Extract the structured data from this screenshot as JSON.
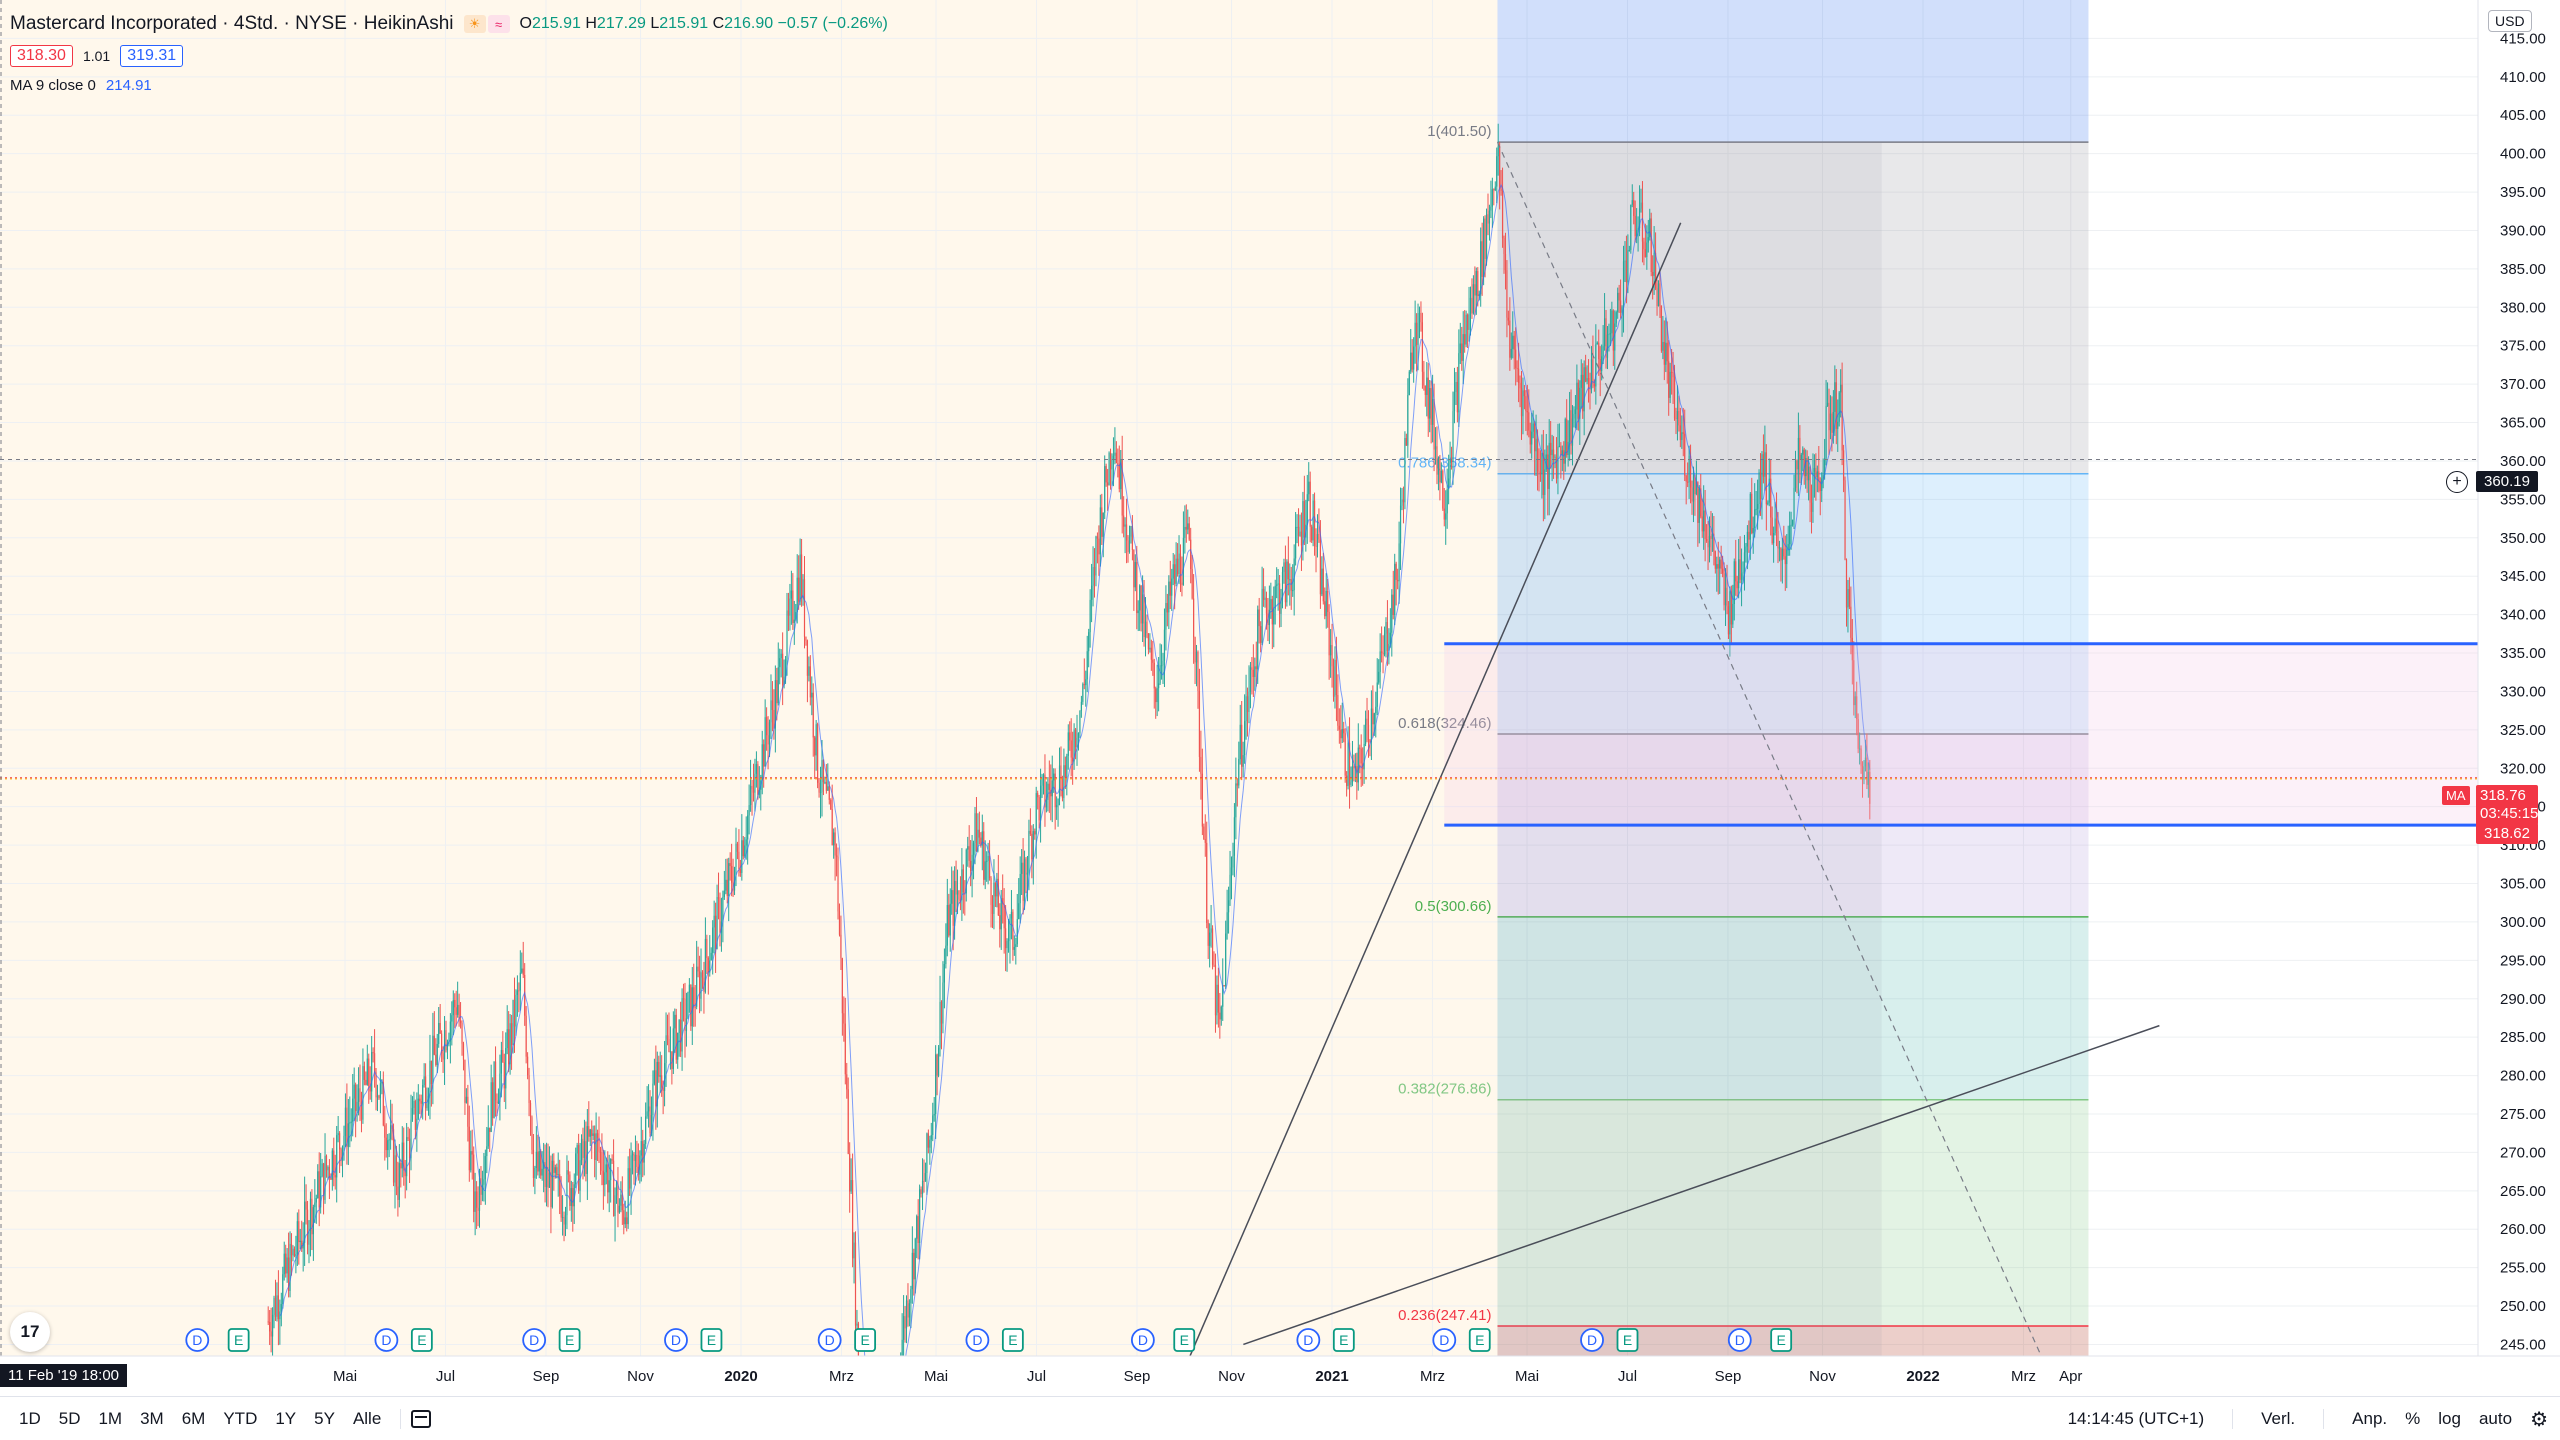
{
  "legend": {
    "title": "Mastercard Incorporated · 4Std. · NYSE · HeikinAshi",
    "ohlc": [
      {
        "k": "O",
        "v": "215.91"
      },
      {
        "k": "H",
        "v": "217.29"
      },
      {
        "k": "L",
        "v": "215.91"
      },
      {
        "k": "C",
        "v": "216.90"
      },
      {
        "k": "",
        "v": "−0.57 (−0.26%)"
      }
    ],
    "sell_price": "318.30",
    "spread": "1.01",
    "buy_price": "319.31",
    "ma_label": "MA 9 close 0",
    "ma_value": "214.91",
    "icons": [
      "sun-icon",
      "wave-icon"
    ]
  },
  "axis_badges": {
    "currency": "USD",
    "crosshair_price": "360.19",
    "last_price": "318.76",
    "countdown": "03:45:15",
    "ma_badge": "MA",
    "ma_price": "318.62",
    "date_cursor": "11 Feb '19   18:00"
  },
  "toolbar": {
    "timeframes": [
      "1D",
      "5D",
      "1M",
      "3M",
      "6M",
      "YTD",
      "1Y",
      "5Y",
      "Alle"
    ],
    "clock": "14:14:45 (UTC+1)",
    "adjust": "Verl.",
    "right_items": [
      "Anp.",
      "%",
      "log",
      "auto"
    ]
  },
  "chart_data": {
    "type": "candlestick",
    "series_type": "HeikinAshi",
    "y_ticks": [
      245,
      250,
      255,
      260,
      265,
      270,
      275,
      280,
      285,
      290,
      295,
      300,
      305,
      310,
      315,
      320,
      325,
      330,
      335,
      340,
      345,
      350,
      355,
      360,
      365,
      370,
      375,
      380,
      385,
      390,
      395,
      400,
      405,
      410,
      415
    ],
    "ylim": [
      243.5,
      420
    ],
    "grid": true,
    "x_ticks": [
      {
        "label": "Mai",
        "t": 0.33,
        "bold": false
      },
      {
        "label": "Jul",
        "t": 0.5,
        "bold": false
      },
      {
        "label": "Sep",
        "t": 0.67,
        "bold": false
      },
      {
        "label": "Nov",
        "t": 0.83,
        "bold": false
      },
      {
        "label": "2020",
        "t": 1.0,
        "bold": true
      },
      {
        "label": "Mrz",
        "t": 1.17,
        "bold": false
      },
      {
        "label": "Mai",
        "t": 1.33,
        "bold": false
      },
      {
        "label": "Jul",
        "t": 1.5,
        "bold": false
      },
      {
        "label": "Sep",
        "t": 1.67,
        "bold": false
      },
      {
        "label": "Nov",
        "t": 1.83,
        "bold": false
      },
      {
        "label": "2021",
        "t": 2.0,
        "bold": true
      },
      {
        "label": "Mrz",
        "t": 2.17,
        "bold": false
      },
      {
        "label": "Mai",
        "t": 2.33,
        "bold": false
      },
      {
        "label": "Jul",
        "t": 2.5,
        "bold": false
      },
      {
        "label": "Sep",
        "t": 2.67,
        "bold": false
      },
      {
        "label": "Nov",
        "t": 2.83,
        "bold": false
      },
      {
        "label": "2022",
        "t": 3.0,
        "bold": true
      },
      {
        "label": "Mrz",
        "t": 3.17,
        "bold": false
      },
      {
        "label": "Apr",
        "t": 3.25,
        "bold": false
      }
    ],
    "price_path": [
      [
        0.2,
        248
      ],
      [
        0.3,
        268
      ],
      [
        0.38,
        281
      ],
      [
        0.42,
        266
      ],
      [
        0.46,
        278
      ],
      [
        0.52,
        290
      ],
      [
        0.55,
        262
      ],
      [
        0.58,
        278
      ],
      [
        0.6,
        281
      ],
      [
        0.63,
        293
      ],
      [
        0.65,
        268
      ],
      [
        0.7,
        264
      ],
      [
        0.75,
        272
      ],
      [
        0.8,
        262
      ],
      [
        0.86,
        280
      ],
      [
        0.92,
        290
      ],
      [
        1.0,
        310
      ],
      [
        1.06,
        330
      ],
      [
        1.1,
        346
      ],
      [
        1.13,
        320
      ],
      [
        1.16,
        310
      ],
      [
        1.18,
        275
      ],
      [
        1.2,
        240
      ],
      [
        1.24,
        228
      ],
      [
        1.28,
        250
      ],
      [
        1.32,
        272
      ],
      [
        1.35,
        300
      ],
      [
        1.4,
        312
      ],
      [
        1.44,
        300
      ],
      [
        1.46,
        298
      ],
      [
        1.5,
        315
      ],
      [
        1.55,
        320
      ],
      [
        1.58,
        330
      ],
      [
        1.6,
        348
      ],
      [
        1.63,
        364
      ],
      [
        1.66,
        348
      ],
      [
        1.7,
        330
      ],
      [
        1.73,
        344
      ],
      [
        1.76,
        350
      ],
      [
        1.79,
        300
      ],
      [
        1.81,
        285
      ],
      [
        1.84,
        320
      ],
      [
        1.88,
        340
      ],
      [
        1.93,
        345
      ],
      [
        1.96,
        356
      ],
      [
        1.99,
        340
      ],
      [
        2.02,
        322
      ],
      [
        2.04,
        318
      ],
      [
        2.08,
        332
      ],
      [
        2.11,
        345
      ],
      [
        2.14,
        380
      ],
      [
        2.16,
        370
      ],
      [
        2.19,
        355
      ],
      [
        2.22,
        375
      ],
      [
        2.25,
        385
      ],
      [
        2.28,
        400
      ],
      [
        2.3,
        376
      ],
      [
        2.33,
        366
      ],
      [
        2.36,
        358
      ],
      [
        2.4,
        364
      ],
      [
        2.44,
        372
      ],
      [
        2.48,
        378
      ],
      [
        2.51,
        392
      ],
      [
        2.54,
        388
      ],
      [
        2.57,
        370
      ],
      [
        2.6,
        360
      ],
      [
        2.64,
        350
      ],
      [
        2.67,
        340
      ],
      [
        2.7,
        350
      ],
      [
        2.73,
        360
      ],
      [
        2.76,
        345
      ],
      [
        2.79,
        360
      ],
      [
        2.82,
        355
      ],
      [
        2.84,
        366
      ],
      [
        2.86,
        368
      ],
      [
        2.87,
        345
      ],
      [
        2.89,
        322
      ],
      [
        2.91,
        318.8
      ]
    ],
    "ma9": {
      "name": "MA 9 close 0",
      "color": "#2962ff"
    },
    "fibonacci": {
      "levels": [
        {
          "label": "1(401.50)",
          "value": 401.5,
          "color": "#787b86"
        },
        {
          "label": "0.786(358.34)",
          "value": 358.34,
          "color": "#64b5f6"
        },
        {
          "label": "0.618(324.46)",
          "value": 324.46,
          "color": "#787b86"
        },
        {
          "label": "0.5(300.66)",
          "value": 300.66,
          "color": "#4caf50"
        },
        {
          "label": "0.382(276.86)",
          "value": 276.86,
          "color": "#81c784"
        },
        {
          "label": "0.236(247.41)",
          "value": 247.41,
          "color": "#f23645"
        }
      ],
      "t_start": 2.28,
      "t_end": 3.28
    },
    "horizontal_lines": [
      {
        "value": 336.2,
        "color": "#2962ff"
      },
      {
        "value": 312.6,
        "color": "#2962ff"
      }
    ],
    "ranges_highlight": [
      {
        "t0": 2.28,
        "t1": 2.93,
        "color": "#9598a1"
      }
    ],
    "trendlines": [
      {
        "from": [
          1.74,
          240
        ],
        "to": [
          2.59,
          391
        ]
      },
      {
        "from": [
          1.85,
          245
        ],
        "to": [
          3.4,
          286.5
        ]
      }
    ],
    "dashed_diagonal": {
      "from": [
        2.28,
        401.5
      ],
      "to": [
        3.2,
        243.5
      ]
    },
    "events": [
      {
        "t": 0.08,
        "kind": "D"
      },
      {
        "t": 0.15,
        "kind": "E"
      },
      {
        "t": 0.4,
        "kind": "D"
      },
      {
        "t": 0.46,
        "kind": "E"
      },
      {
        "t": 0.65,
        "kind": "D"
      },
      {
        "t": 0.71,
        "kind": "E"
      },
      {
        "t": 0.89,
        "kind": "D"
      },
      {
        "t": 0.95,
        "kind": "E"
      },
      {
        "t": 1.15,
        "kind": "D"
      },
      {
        "t": 1.21,
        "kind": "E"
      },
      {
        "t": 1.4,
        "kind": "D"
      },
      {
        "t": 1.46,
        "kind": "E"
      },
      {
        "t": 1.68,
        "kind": "D"
      },
      {
        "t": 1.75,
        "kind": "E"
      },
      {
        "t": 1.96,
        "kind": "D"
      },
      {
        "t": 2.02,
        "kind": "E"
      },
      {
        "t": 2.19,
        "kind": "D"
      },
      {
        "t": 2.25,
        "kind": "E"
      },
      {
        "t": 2.44,
        "kind": "D"
      },
      {
        "t": 2.5,
        "kind": "E"
      },
      {
        "t": 2.69,
        "kind": "D"
      },
      {
        "t": 2.76,
        "kind": "E"
      }
    ],
    "colors": {
      "up": "#26a69a",
      "down": "#ef5350",
      "grid": "#eef0f3",
      "bg": "#ffffff"
    }
  }
}
